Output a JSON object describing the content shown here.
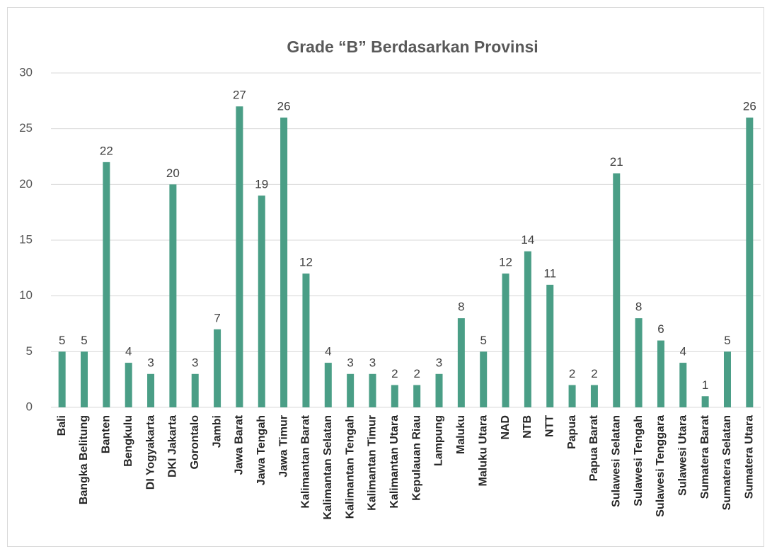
{
  "chart_data": {
    "type": "bar",
    "title": "Grade “B” Berdasarkan Provinsi",
    "categories": [
      "Bali",
      "Bangka Belitung",
      "Banten",
      "Bengkulu",
      "DI Yogyakarta",
      "DKI Jakarta",
      "Gorontalo",
      "Jambi",
      "Jawa Barat",
      "Jawa Tengah",
      "Jawa Timur",
      "Kalimantan Barat",
      "Kalimantan Selatan",
      "Kalimantan Tengah",
      "Kalimantan Timur",
      "Kalimantan Utara",
      "Kepulauan Riau",
      "Lampung",
      "Maluku",
      "Maluku Utara",
      "NAD",
      "NTB",
      "NTT",
      "Papua",
      "Papua Barat",
      "Sulawesi Selatan",
      "Sulawesi Tengah",
      "Sulawesi Tenggara",
      "Sulawesi Utara",
      "Sumatera Barat",
      "Sumatera Selatan",
      "Sumatera Utara"
    ],
    "values": [
      5,
      5,
      22,
      4,
      3,
      20,
      3,
      7,
      27,
      19,
      26,
      12,
      4,
      3,
      3,
      2,
      2,
      3,
      8,
      5,
      12,
      14,
      11,
      2,
      2,
      21,
      8,
      6,
      4,
      1,
      5,
      26
    ],
    "color": "#4a9e86",
    "ylim": [
      0,
      30
    ],
    "yticks": [
      0,
      5,
      10,
      15,
      20,
      25,
      30
    ],
    "grid": true
  }
}
